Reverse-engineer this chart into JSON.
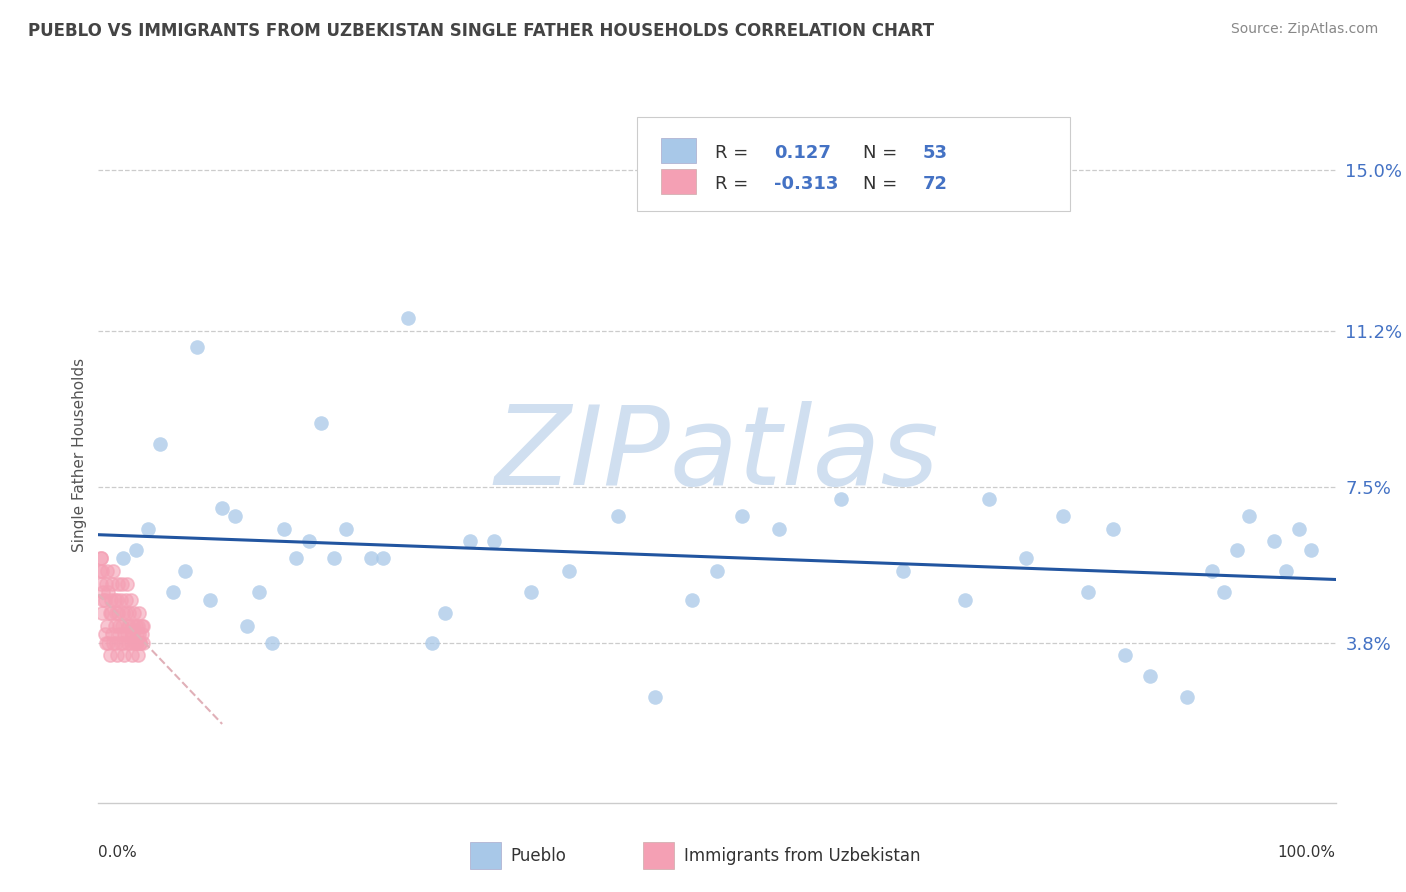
{
  "title": "PUEBLO VS IMMIGRANTS FROM UZBEKISTAN SINGLE FATHER HOUSEHOLDS CORRELATION CHART",
  "source": "Source: ZipAtlas.com",
  "ylabel": "Single Father Households",
  "ytick_labels": [
    "3.8%",
    "7.5%",
    "11.2%",
    "15.0%"
  ],
  "ytick_values": [
    0.038,
    0.075,
    0.112,
    0.15
  ],
  "color_pueblo": "#a8c8e8",
  "color_imm": "#f4a0b4",
  "color_line_pueblo": "#2255a0",
  "color_line_imm": "#e0b0b8",
  "watermark": "ZIPatlas",
  "watermark_color": "#d0dff0",
  "pueblo_x": [
    0.02,
    0.04,
    0.06,
    0.08,
    0.1,
    0.12,
    0.14,
    0.16,
    0.18,
    0.2,
    0.22,
    0.25,
    0.28,
    0.3,
    0.35,
    0.38,
    0.42,
    0.48,
    0.52,
    0.55,
    0.6,
    0.65,
    0.7,
    0.72,
    0.75,
    0.78,
    0.8,
    0.82,
    0.83,
    0.85,
    0.88,
    0.9,
    0.91,
    0.92,
    0.93,
    0.95,
    0.96,
    0.97,
    0.98,
    0.45,
    0.5,
    0.15,
    0.09,
    0.07,
    0.05,
    0.03,
    0.11,
    0.13,
    0.17,
    0.19,
    0.23,
    0.27,
    0.32
  ],
  "pueblo_y": [
    0.058,
    0.065,
    0.05,
    0.108,
    0.07,
    0.042,
    0.038,
    0.058,
    0.09,
    0.065,
    0.058,
    0.115,
    0.045,
    0.062,
    0.05,
    0.055,
    0.068,
    0.048,
    0.068,
    0.065,
    0.072,
    0.055,
    0.048,
    0.072,
    0.058,
    0.068,
    0.05,
    0.065,
    0.035,
    0.03,
    0.025,
    0.055,
    0.05,
    0.06,
    0.068,
    0.062,
    0.055,
    0.065,
    0.06,
    0.025,
    0.055,
    0.065,
    0.048,
    0.055,
    0.085,
    0.06,
    0.068,
    0.05,
    0.062,
    0.058,
    0.058,
    0.038,
    0.062
  ],
  "imm_x": [
    0.002,
    0.003,
    0.004,
    0.005,
    0.006,
    0.007,
    0.008,
    0.009,
    0.01,
    0.011,
    0.012,
    0.013,
    0.014,
    0.015,
    0.016,
    0.017,
    0.018,
    0.019,
    0.02,
    0.021,
    0.022,
    0.023,
    0.024,
    0.025,
    0.026,
    0.027,
    0.028,
    0.029,
    0.03,
    0.031,
    0.032,
    0.033,
    0.034,
    0.035,
    0.036,
    0.002,
    0.003,
    0.004,
    0.005,
    0.006,
    0.007,
    0.008,
    0.009,
    0.01,
    0.011,
    0.012,
    0.013,
    0.014,
    0.015,
    0.016,
    0.017,
    0.018,
    0.019,
    0.02,
    0.021,
    0.022,
    0.023,
    0.024,
    0.025,
    0.026,
    0.027,
    0.028,
    0.029,
    0.03,
    0.031,
    0.032,
    0.033,
    0.034,
    0.035,
    0.036,
    0.001,
    0.002
  ],
  "imm_y": [
    0.052,
    0.045,
    0.048,
    0.04,
    0.038,
    0.042,
    0.038,
    0.035,
    0.045,
    0.04,
    0.038,
    0.042,
    0.038,
    0.035,
    0.045,
    0.04,
    0.038,
    0.042,
    0.038,
    0.035,
    0.045,
    0.04,
    0.038,
    0.042,
    0.038,
    0.035,
    0.04,
    0.038,
    0.042,
    0.038,
    0.035,
    0.04,
    0.038,
    0.042,
    0.038,
    0.058,
    0.055,
    0.05,
    0.048,
    0.052,
    0.055,
    0.05,
    0.045,
    0.048,
    0.052,
    0.055,
    0.048,
    0.045,
    0.048,
    0.052,
    0.042,
    0.048,
    0.052,
    0.045,
    0.04,
    0.048,
    0.052,
    0.042,
    0.045,
    0.048,
    0.04,
    0.042,
    0.045,
    0.038,
    0.04,
    0.042,
    0.045,
    0.038,
    0.04,
    0.042,
    0.055,
    0.058
  ],
  "xlim": [
    0.0,
    1.0
  ],
  "ylim": [
    0.0,
    0.165
  ],
  "background_color": "#ffffff",
  "grid_color": "#cccccc",
  "title_color": "#444444",
  "source_color": "#888888",
  "label_color": "#4472c4",
  "axis_color": "#cccccc"
}
